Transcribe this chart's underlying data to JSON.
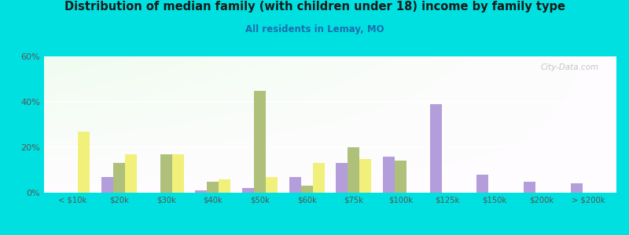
{
  "title": "Distribution of median family (with children under 18) income by family type",
  "subtitle": "All residents in Lemay, MO",
  "categories": [
    "< $10k",
    "$20k",
    "$30k",
    "$40k",
    "$50k",
    "$60k",
    "$75k",
    "$100k",
    "$125k",
    "$150k",
    "$200k",
    "> $200k"
  ],
  "married_couple": [
    0,
    7,
    0,
    1,
    2,
    7,
    13,
    16,
    39,
    8,
    5,
    4
  ],
  "male_no_wife": [
    0,
    13,
    17,
    5,
    45,
    3,
    20,
    14,
    0,
    0,
    0,
    0
  ],
  "female_no_husband": [
    27,
    17,
    17,
    6,
    7,
    13,
    15,
    0,
    0,
    0,
    0,
    0
  ],
  "colors": {
    "married_couple": "#b39ddb",
    "male_no_wife": "#aec07a",
    "female_no_husband": "#f0f07a"
  },
  "ylim": [
    0,
    60
  ],
  "yticks": [
    0,
    20,
    40,
    60
  ],
  "ytick_labels": [
    "0%",
    "20%",
    "40%",
    "60%"
  ],
  "background_color": "#00e0e0",
  "watermark": "City-Data.com"
}
